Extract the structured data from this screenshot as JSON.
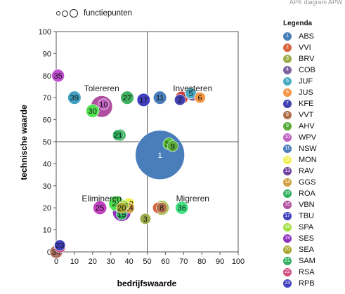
{
  "watermark": "APK diagram APW",
  "size_legend_label": "functiepunten",
  "legend_title": "Legenda",
  "chart_data": {
    "type": "scatter",
    "title": "",
    "xlabel": "bedrijfswaarde",
    "ylabel": "technische waarde",
    "xlim": [
      0,
      100
    ],
    "ylim": [
      0,
      100
    ],
    "xticks": [
      0,
      10,
      20,
      30,
      40,
      50,
      60,
      70,
      80,
      90,
      100
    ],
    "yticks": [
      0,
      10,
      20,
      30,
      40,
      50,
      60,
      70,
      80,
      90,
      100
    ],
    "grid": false,
    "reference_lines": {
      "x": 50,
      "y": 50
    },
    "quadrant_labels": [
      {
        "text": "Tolereren",
        "x": 25,
        "y": 73
      },
      {
        "text": "Investeren",
        "x": 75,
        "y": 73
      },
      {
        "text": "Elimineren",
        "x": 25,
        "y": 23
      },
      {
        "text": "Migreren",
        "x": 75,
        "y": 23
      }
    ],
    "legend_position": "right",
    "series": [
      {
        "id": "1",
        "name": "ABS",
        "x": 57,
        "y": 44,
        "size": 13.5,
        "color": "#4a7ebb"
      },
      {
        "id": "2",
        "name": "VVI",
        "x": 56,
        "y": 20,
        "size": 3,
        "color": "#d9653f"
      },
      {
        "id": "3",
        "name": "BRV",
        "x": 49,
        "y": 15,
        "size": 3,
        "color": "#9bad4a"
      },
      {
        "id": "4",
        "name": "COB",
        "x": 75,
        "y": 71,
        "size": 3,
        "color": "#8064a2"
      },
      {
        "id": "5",
        "name": "JUF",
        "x": 74,
        "y": 72,
        "size": 3,
        "color": "#4bacc6"
      },
      {
        "id": "6",
        "name": "JUS",
        "x": 79,
        "y": 70,
        "size": 3,
        "color": "#f79646"
      },
      {
        "id": "7",
        "name": "KFE",
        "x": 68,
        "y": 69,
        "size": 3,
        "color": "#4040b0"
      },
      {
        "id": "8",
        "name": "VVT",
        "x": 58,
        "y": 20,
        "size": 3,
        "color": "#b0704a"
      },
      {
        "id": "9",
        "name": "AHV",
        "x": 64,
        "y": 48,
        "size": 3,
        "color": "#5aab3a"
      },
      {
        "id": "10",
        "name": "WPV",
        "x": 26,
        "y": 67,
        "size": 3,
        "color": "#c060c0"
      },
      {
        "id": "11",
        "name": "NSW",
        "x": 57,
        "y": 70,
        "size": 3.6,
        "color": "#4a7ebb"
      },
      {
        "id": "12",
        "name": "MON",
        "x": 40,
        "y": 22,
        "size": 3,
        "color": "#f0f050"
      },
      {
        "id": "13",
        "name": "RAV",
        "x": 36,
        "y": 19,
        "size": 3,
        "color": "#7040a0"
      },
      {
        "id": "14",
        "name": "GGS",
        "x": 40,
        "y": 20,
        "size": 3,
        "color": "#d0a040"
      },
      {
        "id": "15",
        "name": "ROA",
        "x": 36,
        "y": 17,
        "size": 3,
        "color": "#30b060"
      },
      {
        "id": "16",
        "name": "VBN",
        "x": 25,
        "y": 66,
        "size": 5.9,
        "color": "#b04ea0"
      },
      {
        "id": "17",
        "name": "TBU",
        "x": 48,
        "y": 69,
        "size": 3.6,
        "color": "#4040c0"
      },
      {
        "id": "18",
        "name": "SPA",
        "x": 37,
        "y": 21,
        "size": 3,
        "color": "#a0e040"
      },
      {
        "id": "19",
        "name": "SES",
        "x": 36,
        "y": 18,
        "size": 5,
        "color": "#9030c0"
      },
      {
        "id": "20",
        "name": "SEA",
        "x": 36,
        "y": 20,
        "size": 3,
        "color": "#a8a830"
      },
      {
        "id": "21",
        "name": "SAM",
        "x": 34,
        "y": 53,
        "size": 3,
        "color": "#30b060"
      },
      {
        "id": "22",
        "name": "RSA",
        "x": 2,
        "y": 2,
        "size": 3,
        "color": "#d05080"
      },
      {
        "id": "23",
        "name": "RPB",
        "x": 2,
        "y": 3,
        "size": 3,
        "color": "#4040c0"
      },
      {
        "id": "24",
        "name": "",
        "x": 33,
        "y": 22,
        "size": 4.2,
        "color": "#50e050"
      },
      {
        "id": "25",
        "name": "",
        "x": 24,
        "y": 20,
        "size": 3.7,
        "color": "#c040c0"
      },
      {
        "id": "26",
        "name": "",
        "x": 58,
        "y": 20,
        "size": 4,
        "color": "#a0c040"
      },
      {
        "id": "27",
        "name": "",
        "x": 39,
        "y": 70,
        "size": 3.6,
        "color": "#40b060"
      },
      {
        "id": "30",
        "name": "",
        "x": 20,
        "y": 64,
        "size": 3.6,
        "color": "#50e050"
      },
      {
        "id": "32",
        "name": "",
        "x": 62,
        "y": 49,
        "size": 3.3,
        "color": "#50c030"
      },
      {
        "id": "33",
        "name": "",
        "x": 74,
        "y": 72,
        "size": 3.3,
        "color": "#60c0c0"
      },
      {
        "id": "34",
        "name": "",
        "x": 0,
        "y": 0,
        "size": 3.5,
        "color": "#b07060"
      },
      {
        "id": "35",
        "name": "",
        "x": 1,
        "y": 80,
        "size": 3.5,
        "color": "#c050d0"
      },
      {
        "id": "36",
        "name": "",
        "x": 69,
        "y": 20,
        "size": 3.5,
        "color": "#40e080"
      },
      {
        "id": "37",
        "name": "",
        "x": 69,
        "y": 70,
        "size": 3.5,
        "color": "#d04040"
      },
      {
        "id": "38",
        "name": "",
        "x": 35,
        "y": 53,
        "size": 3.3,
        "color": "#40b060"
      },
      {
        "id": "39",
        "name": "",
        "x": 10,
        "y": 70,
        "size": 3.6,
        "color": "#40a0c0"
      }
    ]
  }
}
